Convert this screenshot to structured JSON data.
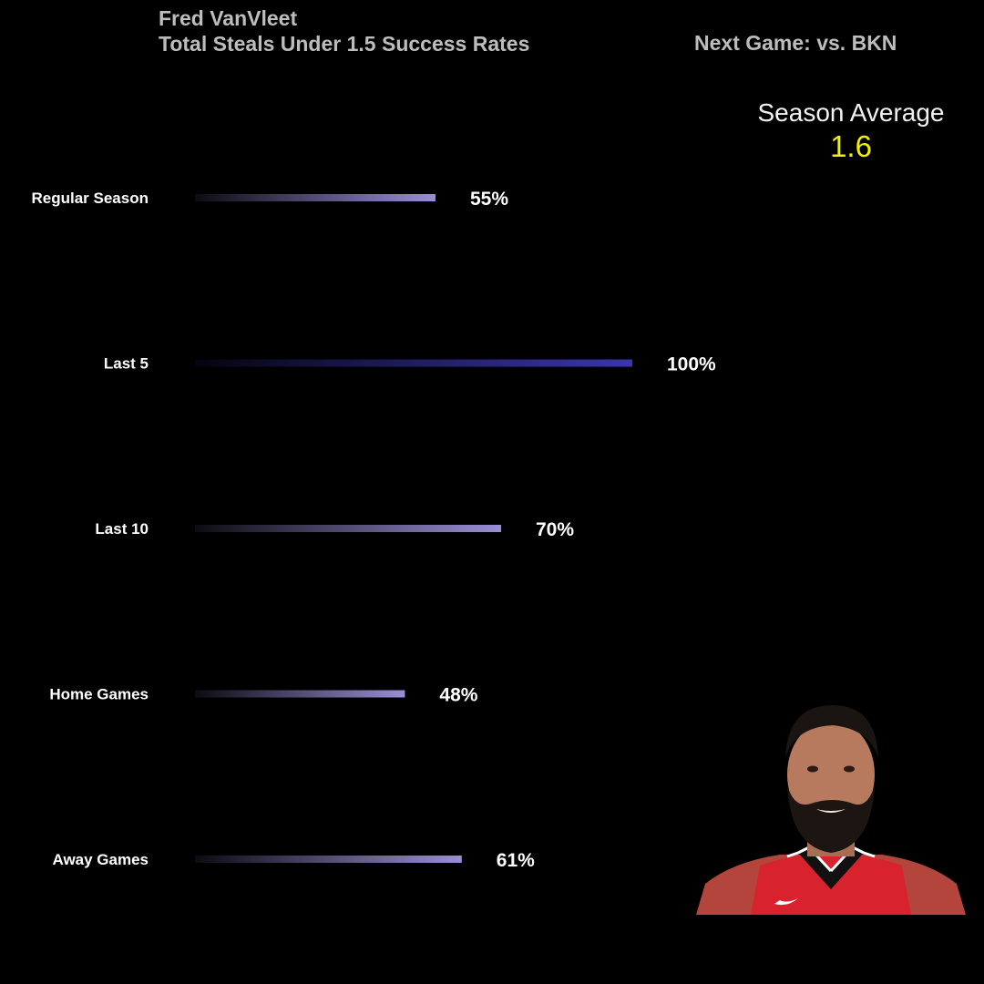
{
  "header": {
    "player": "Fred VanVleet",
    "subtitle": "Total Steals Under 1.5 Success Rates",
    "next_game": "Next Game: vs. BKN"
  },
  "season_average": {
    "label": "Season Average",
    "value": "1.6"
  },
  "colors": {
    "bar_light": "#9a8ed6",
    "bar_full": "#3b35b0",
    "average_value": "#f0f000",
    "title": "#bdbdbd"
  },
  "chart_data": {
    "type": "bar",
    "orientation": "horizontal",
    "title": "Total Steals Under 1.5 Success Rates",
    "categories": [
      "Regular Season",
      "Last 5",
      "Last 10",
      "Home Games",
      "Away Games"
    ],
    "values": [
      55,
      100,
      70,
      48,
      61
    ],
    "value_labels": [
      "55%",
      "100%",
      "70%",
      "48%",
      "61%"
    ],
    "xlim": [
      0,
      100
    ],
    "grid": false,
    "legend": "none"
  },
  "photo": {
    "icon": "player-headshot-icon"
  }
}
